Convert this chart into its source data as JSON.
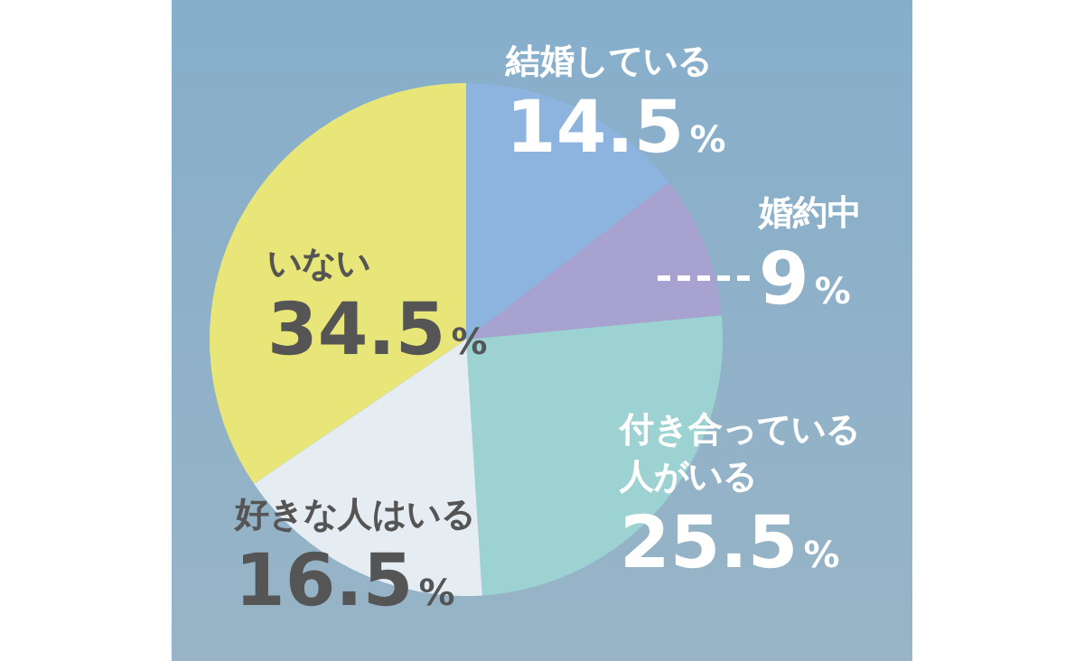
{
  "chart_data": {
    "type": "pie",
    "categories": [
      "結婚している",
      "婚約中",
      "付き合っている人がいる",
      "好きな人はいる",
      "いない"
    ],
    "values": [
      14.5,
      9,
      25.5,
      16.5,
      34.5
    ],
    "value_labels": [
      "14.5%",
      "9%",
      "25.5%",
      "16.5%",
      "34.5%"
    ],
    "colors": [
      "#8db4de",
      "#a7a2d0",
      "#9dd2d2",
      "#e6edf2",
      "#e8e678"
    ],
    "data_labels": true
  }
}
